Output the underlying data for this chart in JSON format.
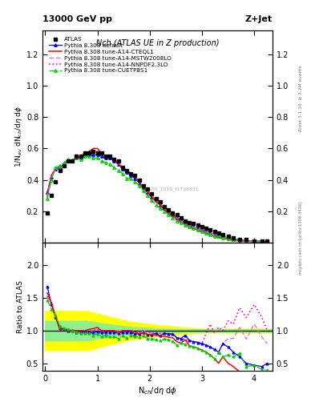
{
  "title_top": "13000 GeV pp",
  "title_right": "Z+Jet",
  "panel_title": "Nch (ATLAS UE in Z production)",
  "ylabel_main": "1/N$_{ev}$ dN$_{ch}$/d$\\eta$ d$\\phi$",
  "ylabel_ratio": "Ratio to ATLAS",
  "xlabel": "N$_{ch}$/d$\\eta$ d$\\phi$",
  "right_label1": "Rivet 3.1.10, ≥ 3.2M events",
  "right_label2": "mcplots.cern.ch [arXiv:1306.3436]",
  "watermark": "ATLAS_2019_I1736531",
  "xlim": [
    -0.05,
    4.35
  ],
  "ylim_main": [
    0.0,
    1.35
  ],
  "ylim_ratio": [
    0.38,
    2.35
  ],
  "yticks_main": [
    0.2,
    0.4,
    0.6,
    0.8,
    1.0,
    1.2
  ],
  "yticks_ratio": [
    0.5,
    1.0,
    1.5,
    2.0
  ],
  "xticks": [
    0,
    1,
    2,
    3,
    4
  ],
  "atlas_x": [
    0.04,
    0.12,
    0.2,
    0.28,
    0.36,
    0.44,
    0.52,
    0.6,
    0.68,
    0.76,
    0.84,
    0.92,
    1.0,
    1.08,
    1.16,
    1.24,
    1.32,
    1.4,
    1.48,
    1.56,
    1.64,
    1.72,
    1.8,
    1.88,
    1.96,
    2.04,
    2.12,
    2.2,
    2.28,
    2.36,
    2.44,
    2.52,
    2.6,
    2.68,
    2.76,
    2.84,
    2.92,
    3.0,
    3.08,
    3.16,
    3.24,
    3.32,
    3.4,
    3.5,
    3.6,
    3.72,
    3.85,
    4.0,
    4.15,
    4.25
  ],
  "atlas_y": [
    0.19,
    0.3,
    0.39,
    0.46,
    0.49,
    0.52,
    0.52,
    0.55,
    0.55,
    0.57,
    0.57,
    0.58,
    0.57,
    0.57,
    0.55,
    0.55,
    0.53,
    0.52,
    0.48,
    0.46,
    0.44,
    0.43,
    0.4,
    0.36,
    0.34,
    0.31,
    0.28,
    0.26,
    0.23,
    0.21,
    0.19,
    0.18,
    0.16,
    0.14,
    0.13,
    0.12,
    0.11,
    0.1,
    0.09,
    0.08,
    0.07,
    0.06,
    0.05,
    0.04,
    0.03,
    0.02,
    0.02,
    0.01,
    0.01,
    0.01
  ],
  "pythia_default_x": [
    0.04,
    0.12,
    0.2,
    0.28,
    0.36,
    0.44,
    0.52,
    0.6,
    0.68,
    0.76,
    0.84,
    0.92,
    1.0,
    1.08,
    1.16,
    1.24,
    1.32,
    1.4,
    1.48,
    1.56,
    1.64,
    1.72,
    1.8,
    1.88,
    1.96,
    2.04,
    2.12,
    2.2,
    2.28,
    2.36,
    2.44,
    2.52,
    2.6,
    2.68,
    2.76,
    2.84,
    2.92,
    3.0,
    3.08,
    3.16,
    3.24,
    3.32,
    3.4,
    3.5,
    3.6,
    3.72,
    3.85,
    4.0,
    4.15,
    4.25
  ],
  "pythia_default_y": [
    0.32,
    0.42,
    0.47,
    0.48,
    0.5,
    0.52,
    0.52,
    0.54,
    0.54,
    0.56,
    0.56,
    0.56,
    0.56,
    0.55,
    0.54,
    0.54,
    0.52,
    0.5,
    0.47,
    0.45,
    0.43,
    0.41,
    0.38,
    0.35,
    0.32,
    0.29,
    0.27,
    0.24,
    0.22,
    0.2,
    0.18,
    0.16,
    0.14,
    0.13,
    0.11,
    0.1,
    0.09,
    0.08,
    0.07,
    0.06,
    0.05,
    0.04,
    0.04,
    0.03,
    0.02,
    0.02,
    0.01,
    0.01,
    0.01,
    0.005
  ],
  "cteql1_x": [
    0.04,
    0.12,
    0.2,
    0.28,
    0.36,
    0.44,
    0.52,
    0.6,
    0.68,
    0.76,
    0.84,
    0.92,
    1.0,
    1.08,
    1.16,
    1.24,
    1.32,
    1.4,
    1.48,
    1.56,
    1.64,
    1.72,
    1.8,
    1.88,
    1.96,
    2.04,
    2.12,
    2.2,
    2.28,
    2.36,
    2.44,
    2.52,
    2.6,
    2.68,
    2.76,
    2.84,
    2.92,
    3.0,
    3.08,
    3.16,
    3.24,
    3.32,
    3.4,
    3.5,
    3.6,
    3.72,
    3.85,
    4.0,
    4.15,
    4.25
  ],
  "cteql1_y": [
    0.3,
    0.43,
    0.47,
    0.47,
    0.5,
    0.52,
    0.52,
    0.55,
    0.55,
    0.57,
    0.58,
    0.6,
    0.6,
    0.57,
    0.55,
    0.55,
    0.53,
    0.5,
    0.48,
    0.46,
    0.44,
    0.42,
    0.38,
    0.35,
    0.32,
    0.29,
    0.26,
    0.24,
    0.21,
    0.19,
    0.17,
    0.15,
    0.13,
    0.12,
    0.1,
    0.09,
    0.08,
    0.07,
    0.06,
    0.05,
    0.04,
    0.03,
    0.03,
    0.02,
    0.015,
    0.01,
    0.008,
    0.006,
    0.004,
    0.003
  ],
  "mstw_x": [
    0.04,
    0.12,
    0.2,
    0.28,
    0.36,
    0.44,
    0.52,
    0.6,
    0.68,
    0.76,
    0.84,
    0.92,
    1.0,
    1.08,
    1.16,
    1.24,
    1.32,
    1.4,
    1.48,
    1.56,
    1.64,
    1.72,
    1.8,
    1.88,
    1.96,
    2.04,
    2.12,
    2.2,
    2.28,
    2.36,
    2.44,
    2.52,
    2.6,
    2.68,
    2.76,
    2.84,
    2.92,
    3.0,
    3.08,
    3.16,
    3.24,
    3.32,
    3.4,
    3.5,
    3.6,
    3.72,
    3.85,
    4.0,
    4.15,
    4.25
  ],
  "mstw_y": [
    0.29,
    0.42,
    0.47,
    0.47,
    0.5,
    0.52,
    0.53,
    0.55,
    0.55,
    0.57,
    0.57,
    0.58,
    0.58,
    0.57,
    0.55,
    0.55,
    0.53,
    0.51,
    0.48,
    0.46,
    0.44,
    0.42,
    0.39,
    0.36,
    0.33,
    0.3,
    0.27,
    0.25,
    0.22,
    0.2,
    0.18,
    0.16,
    0.14,
    0.12,
    0.11,
    0.1,
    0.09,
    0.08,
    0.07,
    0.06,
    0.05,
    0.04,
    0.04,
    0.03,
    0.02,
    0.015,
    0.01,
    0.008,
    0.006,
    0.004
  ],
  "nnpdf_x": [
    0.04,
    0.12,
    0.2,
    0.28,
    0.36,
    0.44,
    0.52,
    0.6,
    0.68,
    0.76,
    0.84,
    0.92,
    1.0,
    1.08,
    1.16,
    1.24,
    1.32,
    1.4,
    1.48,
    1.56,
    1.64,
    1.72,
    1.8,
    1.88,
    1.96,
    2.04,
    2.12,
    2.2,
    2.28,
    2.36,
    2.44,
    2.52,
    2.6,
    2.68,
    2.76,
    2.84,
    2.92,
    3.0,
    3.08,
    3.16,
    3.24,
    3.32,
    3.4,
    3.5,
    3.6,
    3.72,
    3.85,
    4.0,
    4.15,
    4.25
  ],
  "nnpdf_y": [
    0.29,
    0.43,
    0.47,
    0.47,
    0.5,
    0.52,
    0.52,
    0.54,
    0.54,
    0.56,
    0.56,
    0.58,
    0.58,
    0.57,
    0.55,
    0.55,
    0.53,
    0.51,
    0.48,
    0.46,
    0.44,
    0.42,
    0.39,
    0.36,
    0.33,
    0.3,
    0.27,
    0.25,
    0.22,
    0.2,
    0.18,
    0.16,
    0.14,
    0.12,
    0.11,
    0.1,
    0.09,
    0.08,
    0.07,
    0.06,
    0.06,
    0.05,
    0.04,
    0.035,
    0.025,
    0.02,
    0.013,
    0.01,
    0.007,
    0.005
  ],
  "cuetp_x": [
    0.04,
    0.12,
    0.2,
    0.28,
    0.36,
    0.44,
    0.52,
    0.6,
    0.68,
    0.76,
    0.84,
    0.92,
    1.0,
    1.08,
    1.16,
    1.24,
    1.32,
    1.4,
    1.48,
    1.56,
    1.64,
    1.72,
    1.8,
    1.88,
    1.96,
    2.04,
    2.12,
    2.2,
    2.28,
    2.36,
    2.44,
    2.52,
    2.6,
    2.68,
    2.76,
    2.84,
    2.92,
    3.0,
    3.08,
    3.16,
    3.24,
    3.32,
    3.4,
    3.5,
    3.6,
    3.72,
    3.85,
    4.0,
    4.15,
    4.25
  ],
  "cuetp_y": [
    0.28,
    0.4,
    0.48,
    0.49,
    0.51,
    0.53,
    0.52,
    0.54,
    0.53,
    0.55,
    0.55,
    0.54,
    0.54,
    0.52,
    0.51,
    0.5,
    0.48,
    0.46,
    0.44,
    0.41,
    0.41,
    0.39,
    0.36,
    0.33,
    0.3,
    0.27,
    0.24,
    0.22,
    0.2,
    0.18,
    0.16,
    0.14,
    0.13,
    0.11,
    0.1,
    0.09,
    0.08,
    0.07,
    0.06,
    0.05,
    0.04,
    0.04,
    0.03,
    0.025,
    0.018,
    0.013,
    0.009,
    0.007,
    0.005,
    0.004
  ],
  "ratio_x": [
    0.04,
    0.12,
    0.2,
    0.28,
    0.36,
    0.44,
    0.52,
    0.6,
    0.68,
    0.76,
    0.84,
    0.92,
    1.0,
    1.08,
    1.16,
    1.24,
    1.32,
    1.4,
    1.48,
    1.56,
    1.64,
    1.72,
    1.8,
    1.88,
    1.96,
    2.04,
    2.12,
    2.2,
    2.28,
    2.36,
    2.44,
    2.52,
    2.6,
    2.68,
    2.76,
    2.84,
    2.92,
    3.0,
    3.08,
    3.16,
    3.24,
    3.32,
    3.4,
    3.5,
    3.6,
    3.72,
    3.85,
    4.0,
    4.15,
    4.25
  ],
  "ratio_default_y": [
    1.68,
    1.4,
    1.21,
    1.04,
    1.02,
    1.0,
    1.0,
    0.98,
    0.98,
    0.98,
    0.98,
    0.97,
    0.98,
    0.97,
    0.98,
    0.98,
    0.98,
    0.96,
    0.98,
    0.98,
    0.98,
    0.95,
    0.95,
    0.97,
    0.94,
    0.94,
    0.96,
    0.92,
    0.96,
    0.95,
    0.95,
    0.89,
    0.88,
    0.93,
    0.85,
    0.83,
    0.82,
    0.8,
    0.78,
    0.75,
    0.71,
    0.67,
    0.8,
    0.75,
    0.67,
    0.6,
    0.5,
    0.47,
    0.45,
    0.5
  ],
  "ratio_cteql1_y": [
    1.58,
    1.43,
    1.21,
    1.02,
    1.02,
    1.0,
    1.0,
    1.0,
    1.0,
    1.0,
    1.02,
    1.03,
    1.05,
    1.0,
    1.0,
    1.0,
    1.0,
    0.96,
    1.0,
    1.0,
    1.0,
    0.98,
    0.95,
    0.97,
    0.94,
    0.94,
    0.93,
    0.92,
    0.91,
    0.9,
    0.89,
    0.83,
    0.81,
    0.86,
    0.77,
    0.75,
    0.73,
    0.7,
    0.67,
    0.625,
    0.57,
    0.5,
    0.6,
    0.5,
    0.45,
    0.37,
    0.33,
    0.3,
    0.3,
    0.3
  ],
  "ratio_mstw_y": [
    1.53,
    1.4,
    1.21,
    1.02,
    1.02,
    1.0,
    1.02,
    1.0,
    1.0,
    1.0,
    1.0,
    1.0,
    1.02,
    1.0,
    1.0,
    1.0,
    1.0,
    0.98,
    1.0,
    1.0,
    1.0,
    0.98,
    0.97,
    1.0,
    0.97,
    0.97,
    0.96,
    0.96,
    0.96,
    0.95,
    0.95,
    0.89,
    0.88,
    0.86,
    0.85,
    0.83,
    0.82,
    0.8,
    0.78,
    0.75,
    0.71,
    0.67,
    0.8,
    0.88,
    0.88,
    1.05,
    0.87,
    1.1,
    0.9,
    0.8
  ],
  "ratio_nnpdf_y": [
    1.53,
    1.43,
    1.21,
    1.02,
    1.02,
    1.0,
    1.0,
    0.98,
    0.98,
    0.98,
    0.98,
    1.0,
    1.02,
    1.0,
    1.0,
    1.0,
    1.0,
    0.98,
    1.0,
    1.0,
    1.0,
    0.98,
    0.97,
    1.0,
    0.97,
    0.97,
    0.96,
    0.96,
    0.96,
    0.95,
    0.95,
    0.89,
    0.88,
    0.86,
    0.85,
    0.83,
    0.82,
    0.8,
    0.96,
    1.1,
    0.96,
    1.05,
    1.0,
    1.15,
    1.1,
    1.35,
    1.2,
    1.4,
    1.2,
    1.0
  ],
  "ratio_cuetp_y": [
    1.47,
    1.33,
    1.23,
    1.07,
    1.04,
    1.02,
    1.0,
    0.98,
    0.96,
    0.96,
    0.96,
    0.93,
    0.95,
    0.91,
    0.93,
    0.91,
    0.91,
    0.88,
    0.92,
    0.89,
    0.93,
    0.91,
    0.9,
    0.92,
    0.88,
    0.87,
    0.86,
    0.85,
    0.87,
    0.86,
    0.84,
    0.78,
    0.81,
    0.79,
    0.77,
    0.75,
    0.73,
    0.7,
    0.67,
    0.625,
    0.57,
    0.67,
    0.6,
    0.625,
    0.6,
    0.65,
    0.45,
    0.47,
    0.4,
    0.4
  ],
  "band_x": [
    0.0,
    0.2,
    0.4,
    0.6,
    0.8,
    1.0,
    1.2,
    1.4,
    1.6,
    1.8,
    2.0,
    2.2,
    2.4,
    2.6,
    2.8,
    3.0,
    3.2,
    3.4,
    3.6,
    3.8,
    4.0,
    4.2,
    4.35
  ],
  "green_band_y1": [
    0.85,
    0.85,
    0.85,
    0.85,
    0.85,
    0.88,
    0.9,
    0.92,
    0.94,
    0.95,
    0.96,
    0.97,
    0.97,
    0.98,
    0.98,
    0.98,
    0.98,
    0.98,
    0.98,
    0.98,
    0.98,
    0.98,
    0.98
  ],
  "green_band_y2": [
    1.15,
    1.15,
    1.15,
    1.15,
    1.15,
    1.12,
    1.1,
    1.08,
    1.06,
    1.05,
    1.04,
    1.03,
    1.03,
    1.02,
    1.02,
    1.02,
    1.02,
    1.02,
    1.02,
    1.02,
    1.02,
    1.02,
    1.02
  ],
  "yellow_band_y1": [
    0.7,
    0.7,
    0.7,
    0.7,
    0.7,
    0.74,
    0.78,
    0.82,
    0.86,
    0.88,
    0.9,
    0.92,
    0.93,
    0.95,
    0.96,
    0.97,
    0.97,
    0.97,
    0.97,
    0.97,
    0.97,
    0.97,
    0.97
  ],
  "yellow_band_y2": [
    1.3,
    1.3,
    1.3,
    1.3,
    1.3,
    1.26,
    1.22,
    1.18,
    1.14,
    1.12,
    1.1,
    1.08,
    1.07,
    1.05,
    1.04,
    1.03,
    1.03,
    1.03,
    1.03,
    1.03,
    1.03,
    1.03,
    1.03
  ]
}
